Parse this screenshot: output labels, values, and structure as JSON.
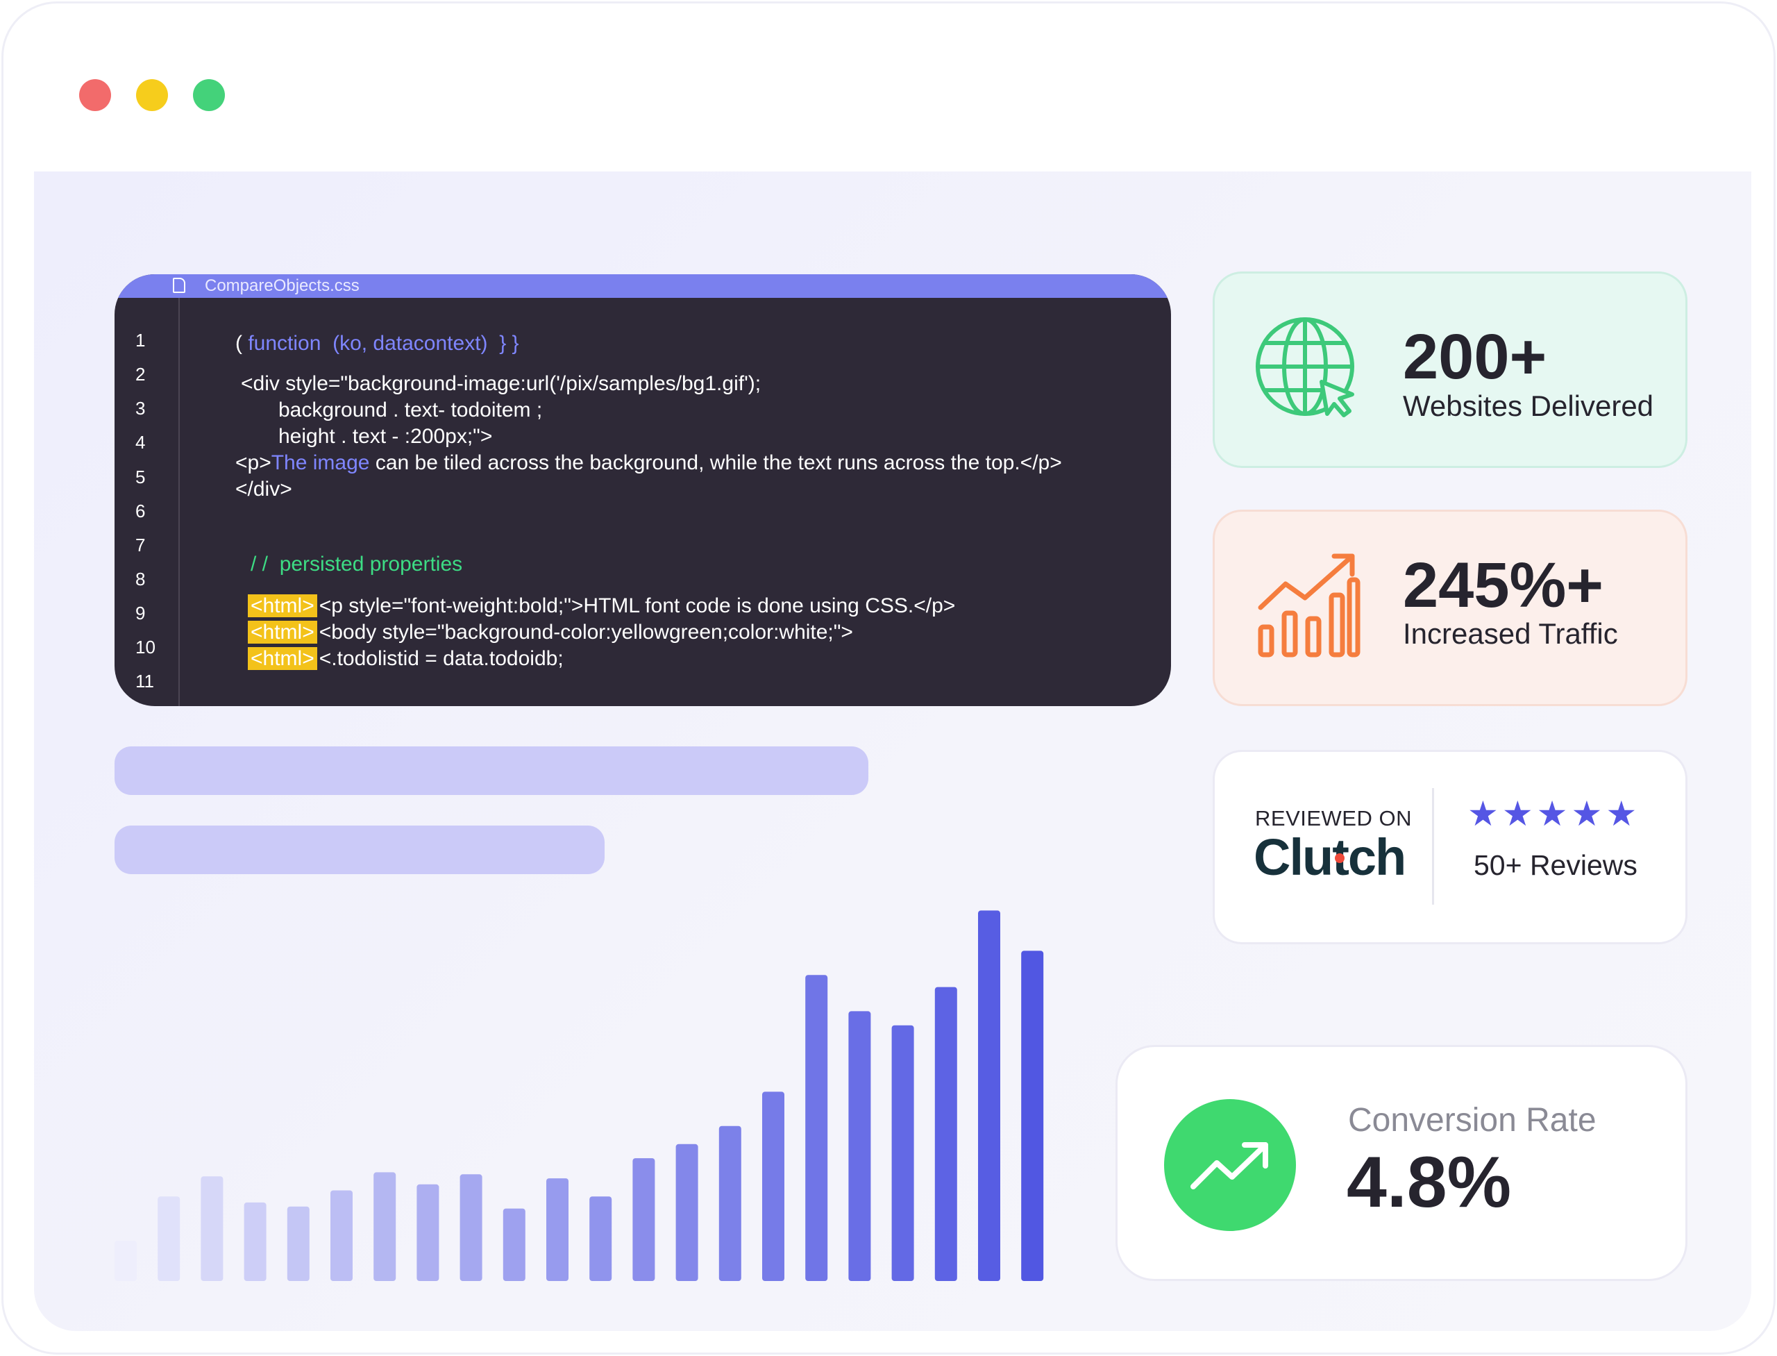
{
  "window": {
    "controls": [
      "close-dot",
      "minimize-dot",
      "maximize-dot"
    ],
    "colors": {
      "close": "#f26b6b",
      "minimize": "#f6cd1c",
      "maximize": "#44d27a"
    }
  },
  "editor": {
    "file_name": "CompareObjects.css",
    "line_numbers": [
      "1",
      "2",
      "3",
      "4",
      "5",
      "6",
      "7",
      "8",
      "9",
      "10",
      "11"
    ],
    "code": {
      "l1_open": "( ",
      "l1_kw": "function",
      "l1_args": "  (ko, datacontext)  } }",
      "l2": "<div style=\"background-image:url('/pix/samples/bg1.gif');",
      "l3": "background . text- todoitem ;",
      "l4": "height . text - :200px;\">",
      "l5_open": "<p>",
      "l5_kw": "The image",
      "l5_rest": " can be tiled across the background, while the text runs across the top.</p>",
      "l6": "</div>",
      "comment_slashes": "/ /",
      "comment_text": "persisted properties",
      "tag_label": "<html>",
      "l9": "<p style=\"font-weight:bold;\">HTML font code is done using CSS.</p>",
      "l10": "<body style=\"background-color:yellowgreen;color:white;\">",
      "l11": "<.todolistid = data.todoidb;"
    },
    "colors": {
      "background": "#2e2937",
      "tab": "#7a80ee",
      "keyword": "#7f86ff",
      "comment": "#3ddc84",
      "tag_highlight": "#f3c21a"
    }
  },
  "chart_data": {
    "type": "bar",
    "values": [
      10,
      21,
      26,
      19.5,
      18.5,
      22.5,
      27,
      24,
      26.5,
      18,
      25.5,
      21,
      30.5,
      34,
      38.5,
      47,
      76,
      67,
      63.5,
      73,
      92,
      82
    ],
    "ylim": [
      0,
      100
    ],
    "colors": {
      "start": "#eeeefc",
      "end": "#5157e2"
    }
  },
  "cards": {
    "websites": {
      "value": "200+",
      "label": "Websites Delivered",
      "icon": "globe-cursor-icon",
      "color": "#3dc97a"
    },
    "traffic": {
      "value": "245%+",
      "label": "Increased Traffic",
      "icon": "growth-chart-icon",
      "color": "#f57d3e"
    },
    "clutch": {
      "reviewed_on": "REVIEWED ON",
      "brand": "Clutch",
      "rating_stars": 5,
      "reviews": "50+ Reviews",
      "star_color": "#5556e4",
      "brand_dot_color": "#ef4a3a"
    },
    "conversion": {
      "label": "Conversion Rate",
      "value": "4.8%",
      "icon": "trend-up-icon",
      "color": "#3fd96f"
    }
  }
}
